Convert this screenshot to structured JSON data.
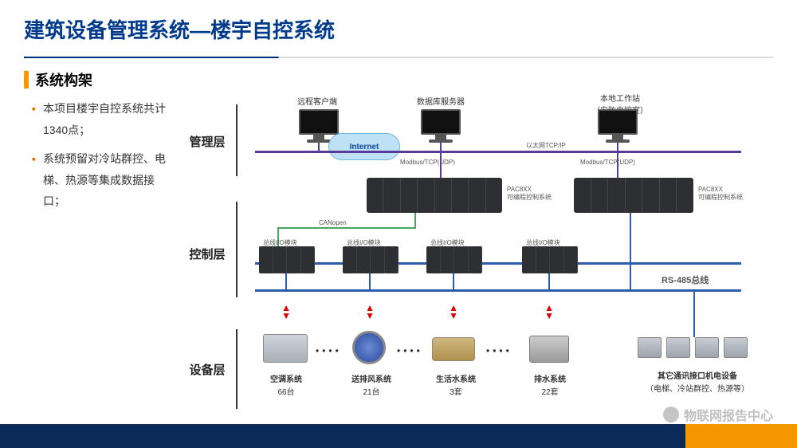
{
  "colors": {
    "title": "#003a8c",
    "underline1": "#00307a",
    "underline2": "#d9d9d9",
    "accent_orange": "#f39800",
    "subtitle": "#222222",
    "bullet": "#e06a00",
    "cloud_bg": "#bfe1f5",
    "cloud_border": "#6bb8e0",
    "cloud_text": "#0b4aa2",
    "bus_purple": "#5a3a9a",
    "bus_blue": "#2a5caa",
    "rack_bg": "#2e2f33",
    "green_wire": "#4aa55a",
    "footer_navy": "#0a2a58",
    "footer_orange": "#f39800"
  },
  "title": "建筑设备管理系统—楼宇自控系统",
  "subtitle": "系统构架",
  "bullets": [
    "本项目楼宇自控系统共计1340点；",
    "系统预留对冷站群控、电梯、热源等集成数据接口；"
  ],
  "layers": {
    "mgmt": "管理层",
    "ctrl": "控制层",
    "dev": "设备层"
  },
  "mgmt_nodes": {
    "remote": "远程客户端",
    "dbserver": "数据库服务器",
    "local": "本地工作站\n（安防中控室）",
    "cloud": "Internet",
    "bus_label": "以太网TCP/IP",
    "modbus": "Modbus/TCP(UDP)"
  },
  "ctrl": {
    "pac_label": "PAC8XX\n可编程控制系统",
    "canopen": "CANopen",
    "io_label": "总线I/O模块",
    "rs485": "RS-485总线"
  },
  "equipment": [
    {
      "name": "空调系统",
      "count": "66台"
    },
    {
      "name": "送排风系统",
      "count": "21台"
    },
    {
      "name": "生活水系统",
      "count": "3套"
    },
    {
      "name": "排水系统",
      "count": "22套"
    }
  ],
  "misc_equipment": {
    "title": "其它通讯接口机电设备",
    "sub": "（电梯、冷站群控、热源等）"
  },
  "watermark": "物联网报告中心"
}
